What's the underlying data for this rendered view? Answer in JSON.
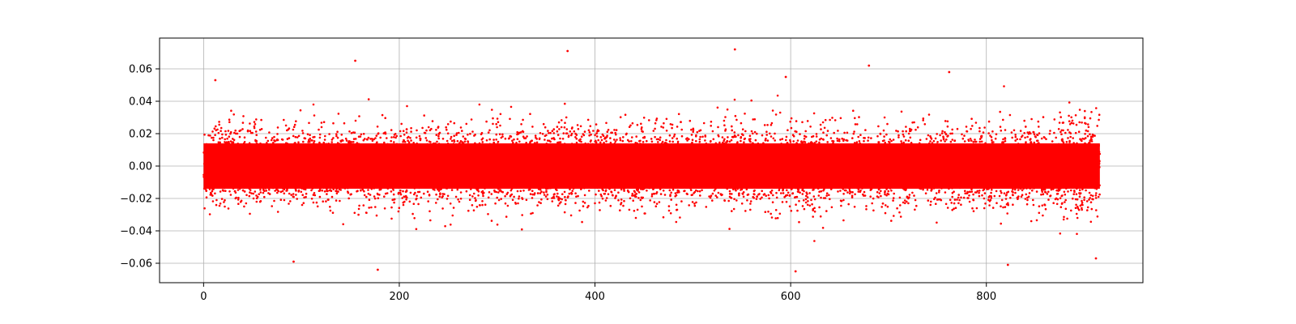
{
  "chart_data": {
    "type": "scatter",
    "title": "",
    "xlabel": "",
    "ylabel": "",
    "xlim": [
      -45,
      960
    ],
    "ylim": [
      -0.072,
      0.079
    ],
    "grid": true,
    "legend": "none",
    "marker_color": "#ff0000",
    "x_ticks": [
      0,
      200,
      400,
      600,
      800
    ],
    "x_tick_labels": [
      "0",
      "200",
      "400",
      "600",
      "800"
    ],
    "y_ticks": [
      -0.06,
      -0.04,
      -0.02,
      0.0,
      0.02,
      0.04,
      0.06
    ],
    "y_tick_labels": [
      "−0.06",
      "−0.04",
      "−0.02",
      "0.00",
      "0.02",
      "0.04",
      "0.06"
    ],
    "series": [
      {
        "x_range": [
          0,
          916
        ],
        "typical_spread": [
          -0.02,
          0.02
        ],
        "outliers": [
          {
            "x": 155,
            "y": 0.065
          },
          {
            "x": 372,
            "y": 0.071
          },
          {
            "x": 543,
            "y": 0.072
          },
          {
            "x": 680,
            "y": 0.062
          },
          {
            "x": 762,
            "y": 0.058
          },
          {
            "x": 12,
            "y": 0.053
          },
          {
            "x": 595,
            "y": 0.055
          },
          {
            "x": 92,
            "y": -0.059
          },
          {
            "x": 178,
            "y": -0.064
          },
          {
            "x": 605,
            "y": -0.065
          },
          {
            "x": 822,
            "y": -0.061
          },
          {
            "x": 912,
            "y": -0.057
          }
        ]
      }
    ]
  }
}
